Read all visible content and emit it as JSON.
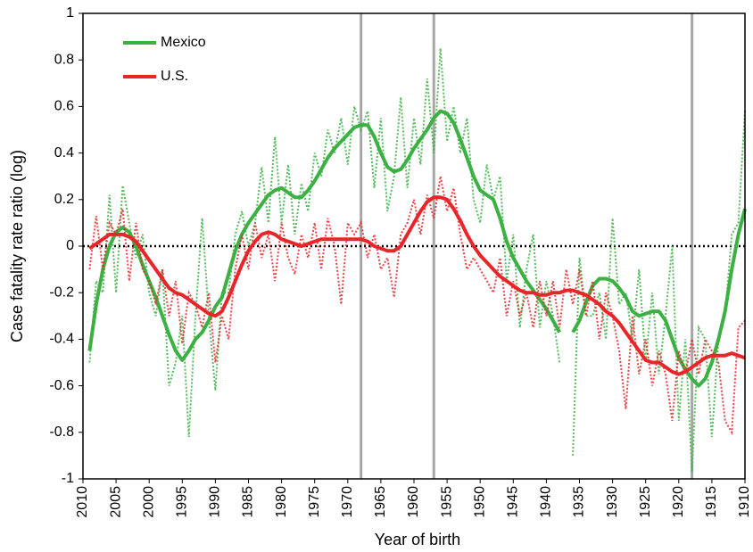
{
  "chart_data": {
    "type": "line",
    "x_label": "Year of birth",
    "y_label": "Case fatality rate ratio  (log)",
    "xlim": [
      2010,
      1910
    ],
    "xticks": [
      2010,
      2005,
      2000,
      1995,
      1990,
      1985,
      1980,
      1975,
      1970,
      1965,
      1960,
      1955,
      1950,
      1945,
      1940,
      1935,
      1930,
      1925,
      1920,
      1915,
      1910
    ],
    "ylim": [
      -1,
      1
    ],
    "yticks": [
      1,
      0.8,
      0.6,
      0.4,
      0.2,
      0,
      -0.2,
      -0.4,
      -0.6,
      -0.8,
      -1
    ],
    "reference_y": 0,
    "reference_x": [
      1968,
      1957,
      1918
    ],
    "legend": "upper left",
    "x": [
      2009,
      2008,
      2007,
      2006,
      2005,
      2004,
      2003,
      2002,
      2001,
      2000,
      1999,
      1998,
      1997,
      1996,
      1995,
      1994,
      1993,
      1992,
      1991,
      1990,
      1989,
      1988,
      1987,
      1986,
      1985,
      1984,
      1983,
      1982,
      1981,
      1980,
      1979,
      1978,
      1977,
      1976,
      1975,
      1974,
      1973,
      1972,
      1971,
      1970,
      1969,
      1968,
      1967,
      1966,
      1965,
      1964,
      1963,
      1962,
      1961,
      1960,
      1959,
      1958,
      1957,
      1956,
      1955,
      1954,
      1953,
      1952,
      1951,
      1950,
      1949,
      1948,
      1947,
      1946,
      1945,
      1944,
      1943,
      1942,
      1941,
      1940,
      1939,
      1938,
      1937,
      1936,
      1935,
      1934,
      1933,
      1932,
      1931,
      1930,
      1929,
      1928,
      1927,
      1926,
      1925,
      1924,
      1923,
      1922,
      1921,
      1920,
      1919,
      1918,
      1917,
      1916,
      1915,
      1914,
      1913,
      1912,
      1911,
      1910
    ],
    "series": [
      {
        "name": "Mexico",
        "color": "#3cb043",
        "values": [
          -0.45,
          -0.25,
          -0.1,
          0.0,
          0.06,
          0.08,
          0.06,
          0.0,
          -0.08,
          -0.15,
          -0.22,
          -0.3,
          -0.38,
          -0.45,
          -0.49,
          -0.45,
          -0.4,
          -0.37,
          -0.32,
          -0.26,
          -0.22,
          -0.12,
          -0.02,
          0.05,
          0.1,
          0.14,
          0.18,
          0.22,
          0.24,
          0.25,
          0.23,
          0.21,
          0.21,
          0.24,
          0.28,
          0.33,
          0.38,
          0.42,
          0.45,
          0.48,
          0.51,
          0.52,
          0.52,
          0.47,
          0.4,
          0.34,
          0.32,
          0.33,
          0.37,
          0.42,
          0.46,
          0.5,
          0.55,
          0.58,
          0.57,
          0.53,
          0.46,
          0.38,
          0.3,
          0.24,
          0.22,
          0.2,
          0.12,
          0.02,
          -0.05,
          -0.1,
          -0.15,
          -0.19,
          -0.23,
          -0.27,
          -0.32,
          -0.37,
          null,
          -0.37,
          -0.32,
          -0.24,
          -0.17,
          -0.14,
          -0.14,
          -0.15,
          -0.18,
          -0.22,
          -0.28,
          -0.3,
          -0.29,
          -0.28,
          -0.28,
          -0.32,
          -0.4,
          -0.48,
          -0.53,
          -0.57,
          -0.6,
          -0.57,
          -0.5,
          -0.4,
          -0.28,
          -0.1,
          0.05,
          0.16
        ],
        "raw": [
          -0.5,
          -0.15,
          -0.2,
          0.22,
          -0.2,
          0.26,
          0.1,
          -0.05,
          0.05,
          -0.2,
          -0.3,
          -0.1,
          -0.6,
          -0.5,
          -0.3,
          -0.82,
          -0.3,
          0.12,
          -0.3,
          -0.62,
          -0.2,
          -0.2,
          0.05,
          0.15,
          0.0,
          0.1,
          0.34,
          0.1,
          0.47,
          0.1,
          0.35,
          0.05,
          0.27,
          0.15,
          0.4,
          0.3,
          0.5,
          0.4,
          0.55,
          0.35,
          0.6,
          0.5,
          0.58,
          0.25,
          0.55,
          0.15,
          0.3,
          0.64,
          0.25,
          0.55,
          0.35,
          0.72,
          0.4,
          0.85,
          0.45,
          0.6,
          0.4,
          0.55,
          0.2,
          0.1,
          0.35,
          0.2,
          0.3,
          -0.15,
          0.05,
          -0.35,
          -0.1,
          0.05,
          -0.35,
          -0.15,
          -0.3,
          -0.5,
          null,
          -0.9,
          -0.05,
          -0.3,
          -0.3,
          -0.2,
          -0.4,
          0.12,
          -0.25,
          -0.2,
          -0.4,
          -0.1,
          -0.5,
          -0.2,
          -0.55,
          -0.3,
          0.0,
          -0.75,
          -0.4,
          -0.97,
          -0.35,
          -0.4,
          -0.82,
          -0.4,
          -0.3,
          0.05,
          0.1,
          0.58
        ]
      },
      {
        "name": "U.S.",
        "color": "#e8262a",
        "values": [
          -0.01,
          0.01,
          0.03,
          0.05,
          0.05,
          0.05,
          0.04,
          0.02,
          -0.02,
          -0.06,
          -0.1,
          -0.14,
          -0.18,
          -0.2,
          -0.21,
          -0.23,
          -0.25,
          -0.27,
          -0.29,
          -0.3,
          -0.28,
          -0.22,
          -0.15,
          -0.08,
          -0.02,
          0.02,
          0.05,
          0.06,
          0.05,
          0.03,
          0.02,
          0.01,
          0.0,
          0.01,
          0.02,
          0.03,
          0.03,
          0.03,
          0.03,
          0.03,
          0.03,
          0.03,
          0.02,
          0.0,
          -0.01,
          -0.02,
          -0.02,
          0.0,
          0.05,
          0.1,
          0.15,
          0.19,
          0.21,
          0.21,
          0.2,
          0.16,
          0.11,
          0.05,
          0.0,
          -0.04,
          -0.07,
          -0.1,
          -0.13,
          -0.15,
          -0.17,
          -0.19,
          -0.2,
          -0.2,
          -0.21,
          -0.21,
          -0.2,
          -0.2,
          -0.19,
          -0.19,
          -0.2,
          -0.21,
          -0.23,
          -0.25,
          -0.28,
          -0.3,
          -0.33,
          -0.37,
          -0.41,
          -0.45,
          -0.49,
          -0.5,
          -0.5,
          -0.52,
          -0.54,
          -0.55,
          -0.54,
          -0.52,
          -0.5,
          -0.48,
          -0.47,
          -0.47,
          -0.47,
          -0.46,
          -0.47,
          -0.48
        ],
        "raw": [
          -0.1,
          0.13,
          -0.1,
          0.1,
          0.05,
          0.16,
          -0.15,
          0.1,
          -0.1,
          -0.15,
          -0.25,
          -0.1,
          -0.3,
          -0.15,
          -0.42,
          -0.2,
          -0.25,
          -0.35,
          -0.2,
          -0.5,
          -0.3,
          -0.4,
          -0.1,
          0.05,
          -0.1,
          0.1,
          -0.05,
          0.05,
          -0.15,
          0.1,
          -0.05,
          -0.12,
          0.05,
          -0.05,
          0.1,
          -0.1,
          0.12,
          0.0,
          -0.25,
          0.1,
          0.05,
          0.1,
          -0.05,
          0.05,
          -0.1,
          -0.05,
          -0.22,
          0.05,
          0.1,
          0.2,
          0.05,
          0.22,
          0.12,
          0.3,
          0.15,
          0.25,
          0.05,
          -0.1,
          -0.05,
          -0.1,
          -0.15,
          -0.2,
          -0.05,
          -0.3,
          -0.15,
          -0.3,
          -0.2,
          -0.35,
          -0.15,
          -0.3,
          -0.15,
          -0.35,
          -0.1,
          -0.25,
          -0.1,
          -0.3,
          -0.15,
          -0.4,
          -0.2,
          -0.3,
          -0.45,
          -0.7,
          -0.3,
          -0.55,
          -0.4,
          -0.6,
          -0.45,
          -0.55,
          -0.75,
          -0.45,
          -0.55,
          -0.4,
          -0.55,
          -0.4,
          -0.45,
          -0.5,
          -0.75,
          -0.8,
          -0.35,
          -0.32
        ]
      }
    ]
  }
}
